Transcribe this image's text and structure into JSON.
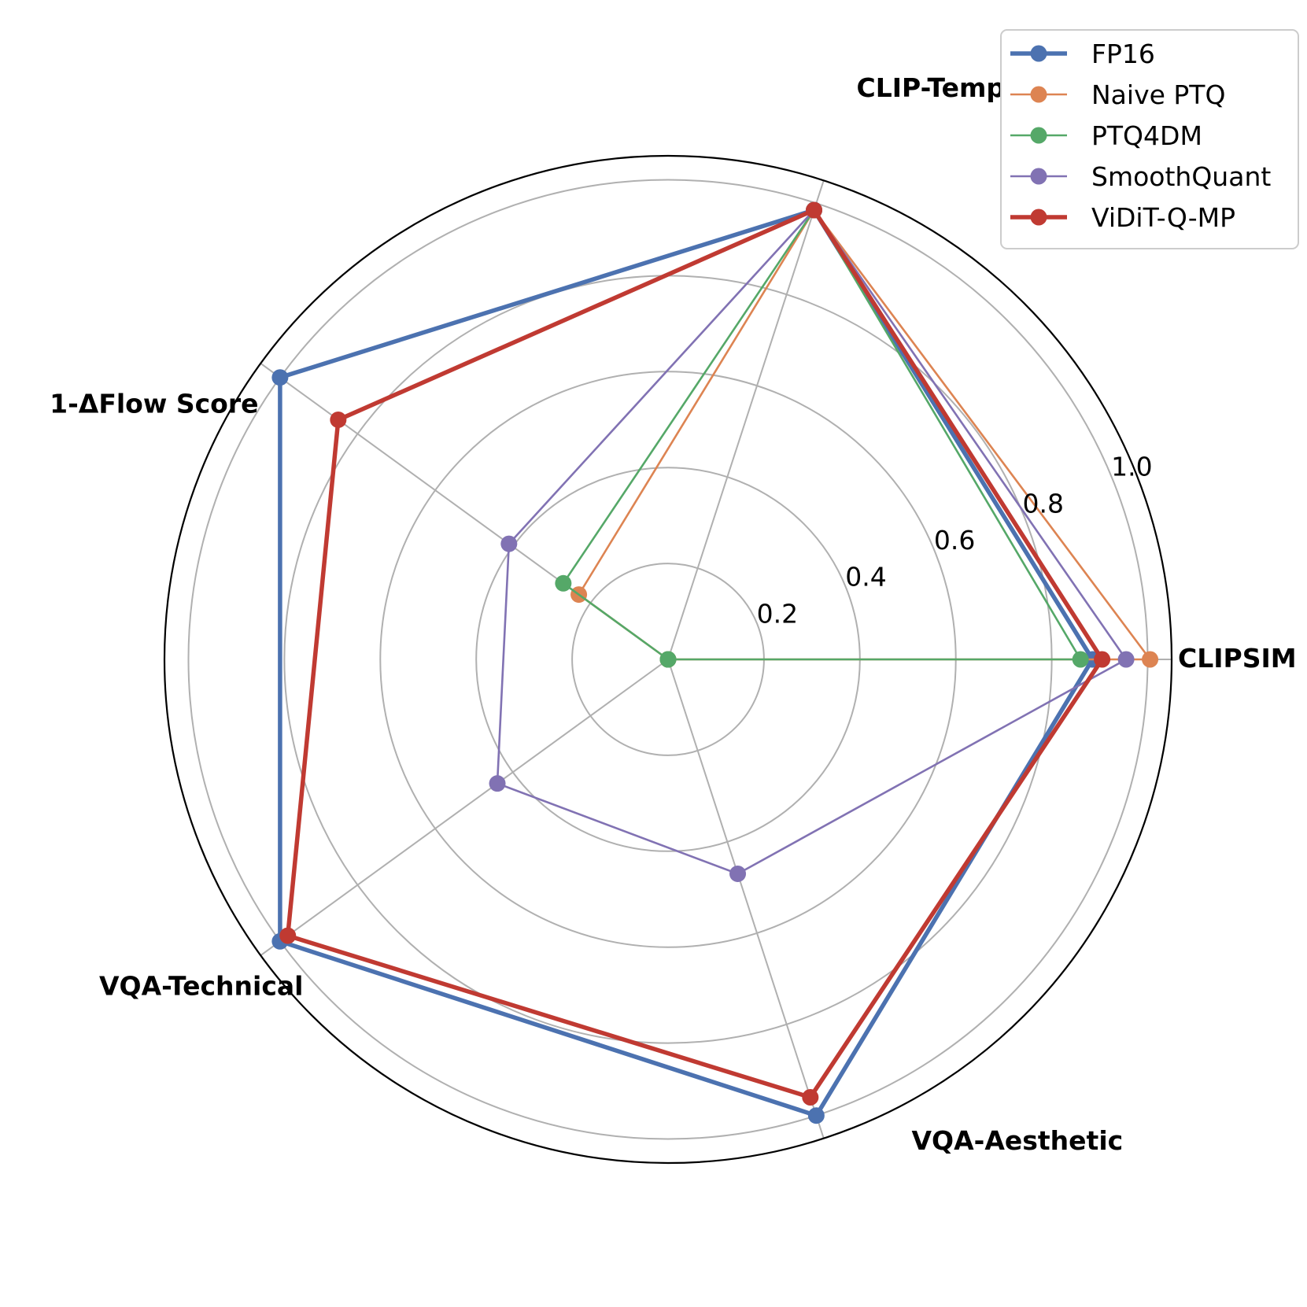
{
  "chart_data": {
    "type": "radar",
    "title": "",
    "axes": [
      "CLIPSIM",
      "CLIP-Temp",
      "1-ΔFlow Score",
      "VQA-Technical",
      "VQA-Aesthetic"
    ],
    "radial_ticks": [
      "0.2",
      "0.4",
      "0.6",
      "0.8",
      "1.0"
    ],
    "rlim": [
      0,
      1.05
    ],
    "grid": true,
    "legend_position": "top-right",
    "series": [
      {
        "name": "FP16",
        "color": "#4c72b0",
        "values": [
          0.885,
          0.985,
          1.0,
          1.0,
          1.0
        ]
      },
      {
        "name": "Naive PTQ",
        "color": "#dd8452",
        "values": [
          1.005,
          0.985,
          0.23,
          0.0,
          0.0
        ]
      },
      {
        "name": "PTQ4DM",
        "color": "#55a868",
        "values": [
          0.86,
          0.985,
          0.27,
          0.0,
          0.0
        ]
      },
      {
        "name": "SmoothQuant",
        "color": "#8172b3",
        "values": [
          0.955,
          0.985,
          0.41,
          0.44,
          0.47
        ]
      },
      {
        "name": "ViDiT-Q-MP",
        "color": "#c03a32",
        "values": [
          0.905,
          0.985,
          0.85,
          0.98,
          0.96
        ]
      }
    ]
  }
}
